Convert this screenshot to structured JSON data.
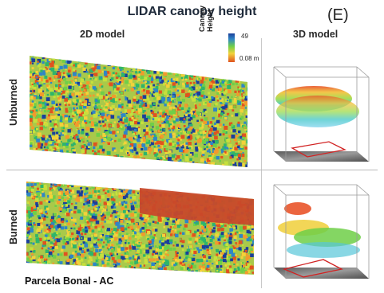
{
  "title": "LIDAR canopy height",
  "panel_letter": "(E)",
  "headers": {
    "model_2d": "2D model",
    "model_3d": "3D model"
  },
  "rows": {
    "unburned": "Unburned",
    "burned": "Burned"
  },
  "legend": {
    "title_line1": "Canopy",
    "title_line2": "Height",
    "max": "49",
    "min": "0.08 m"
  },
  "footer": "Parcela Bonal - AC",
  "colors": {
    "ramp": [
      "#e0531f",
      "#f29a2c",
      "#f2d23a",
      "#c6e03c",
      "#6fcf48",
      "#2fb56a",
      "#2f86c6",
      "#1b3f9a"
    ],
    "burn_patch": "#c8492a",
    "plot_outline": "#d12222",
    "ground": "#6f6f6f"
  }
}
